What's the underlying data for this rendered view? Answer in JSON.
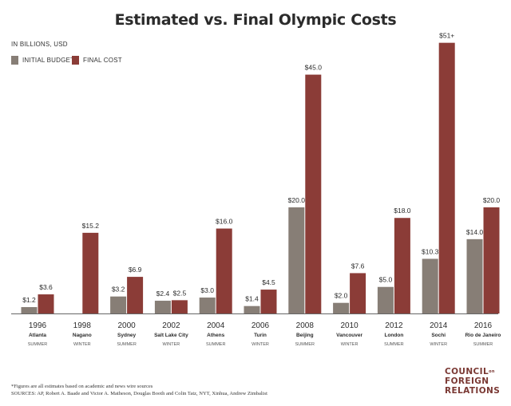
{
  "colors": {
    "initial": "#877e76",
    "final": "#8b3c37",
    "text": "#2b2b2b",
    "axis": "#666666"
  },
  "chart_data": {
    "type": "bar",
    "title": "Estimated vs. Final Olympic Costs",
    "unit_label": "IN BILLIONS, USD",
    "ylim": [
      0,
      52
    ],
    "grid": false,
    "legend": "top-left",
    "years": [
      "1996",
      "1998",
      "2000",
      "2002",
      "2004",
      "2006",
      "2008",
      "2010",
      "2012",
      "2014",
      "2016"
    ],
    "cities": [
      "Atlanta",
      "Nagano",
      "Sydney",
      "Salt Lake City",
      "Athens",
      "Turin",
      "Beijing",
      "Vancouver",
      "London",
      "Sochi",
      "Rio de Janeiro"
    ],
    "seasons": [
      "SUMMER",
      "WINTER",
      "SUMMER",
      "WINTER",
      "SUMMER",
      "WINTER",
      "SUMMER",
      "WINTER",
      "SUMMER",
      "WINTER",
      "SUMMER"
    ],
    "series": [
      {
        "name": "INITIAL BUDGET",
        "values": [
          1.2,
          null,
          3.2,
          2.4,
          3.0,
          1.4,
          20.0,
          2.0,
          5.0,
          10.3,
          14.0
        ],
        "labels": [
          "$1.2",
          "",
          "$3.2",
          "$2.4",
          "$3.0",
          "$1.4",
          "$20.0",
          "$2.0",
          "$5.0",
          "$10.3",
          "$14.0"
        ]
      },
      {
        "name": "FINAL COST",
        "values": [
          3.6,
          15.2,
          6.9,
          2.5,
          16.0,
          4.5,
          45.0,
          7.6,
          18.0,
          51.0,
          20.0
        ],
        "labels": [
          "$3.6",
          "$15.2",
          "$6.9",
          "$2.5",
          "$16.0",
          "$4.5",
          "$45.0",
          "$7.6",
          "$18.0",
          "$51+",
          "$20.0"
        ]
      }
    ]
  },
  "footnote": "*Figures are all estimates based on academic and news wire sources",
  "sources": "SOURCES: AP, Robert A. Baade and Victor A. Matheson, Douglas Booth and Colin Tatz, NYT, Xinhua, Andrew Zimbalist",
  "logo": {
    "line1": "COUNCIL",
    "line1_suffix": "on",
    "line2": "FOREIGN",
    "line3": "RELATIONS"
  }
}
